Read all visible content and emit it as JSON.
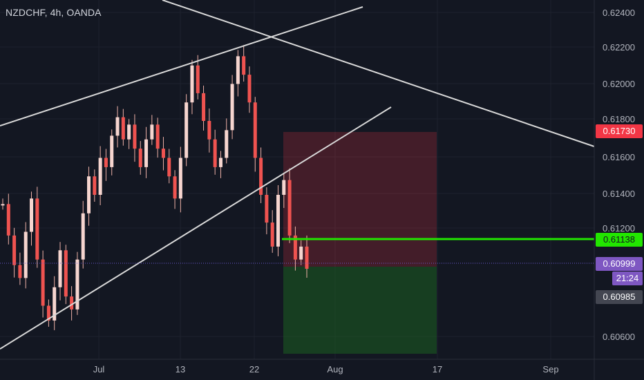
{
  "header": {
    "title": "NZDCHF, 4h, OANDA"
  },
  "colors": {
    "background": "#131722",
    "grid": "#1e222d",
    "candle": "#ef5350",
    "wick": "#f0b2a8",
    "trendline": "#d9d9d9",
    "last_price_line": "#6a5ad1",
    "target_line": "#22e600",
    "stop_zone": "#f23645",
    "target_zone": "#1b5e20",
    "axis_text": "#b2b5be"
  },
  "price_axis": {
    "ticks": [
      "0.62400",
      "0.62200",
      "0.62000",
      "0.61800",
      "0.61600",
      "0.61400",
      "0.61200",
      "0.60600"
    ],
    "labels": [
      {
        "text": "0.61730",
        "bg": "#f23645",
        "fg": "#ffffff"
      },
      {
        "text": "0.61138",
        "bg": "#22e600",
        "fg": "#131722"
      },
      {
        "text": "0.60999",
        "bg": "#7e57c2",
        "fg": "#ffffff"
      },
      {
        "text": "21:24",
        "bg": "#7e57c2",
        "fg": "#ffffff"
      },
      {
        "text": "0.60985",
        "bg": "#434651",
        "fg": "#ffffff"
      }
    ]
  },
  "time_axis": {
    "ticks": [
      "Jul",
      "13",
      "22",
      "Aug",
      "17",
      "Sep"
    ]
  },
  "chart_data": {
    "type": "candlestick",
    "symbol": "NZDCHF",
    "timeframe": "4h",
    "ylim": [
      0.605,
      0.625
    ],
    "closes_approx": [
      0.6135,
      0.6118,
      0.6102,
      0.6095,
      0.612,
      0.6138,
      0.6105,
      0.608,
      0.6072,
      0.609,
      0.611,
      0.6085,
      0.6078,
      0.6105,
      0.613,
      0.615,
      0.614,
      0.616,
      0.6155,
      0.6172,
      0.6182,
      0.617,
      0.6178,
      0.6165,
      0.6155,
      0.617,
      0.6178,
      0.6165,
      0.616,
      0.615,
      0.6138,
      0.616,
      0.619,
      0.621,
      0.6195,
      0.618,
      0.617,
      0.6155,
      0.616,
      0.6175,
      0.62,
      0.6215,
      0.6205,
      0.619,
      0.616,
      0.614,
      0.6125,
      0.6112,
      0.614,
      0.6148,
      0.6118,
      0.6105,
      0.6112,
      0.61
    ],
    "levels": {
      "stop": 0.6173,
      "target_line": 0.61138,
      "last_price": 0.60999,
      "bid": 0.60985,
      "target_zone_bottom": 0.6052
    }
  }
}
